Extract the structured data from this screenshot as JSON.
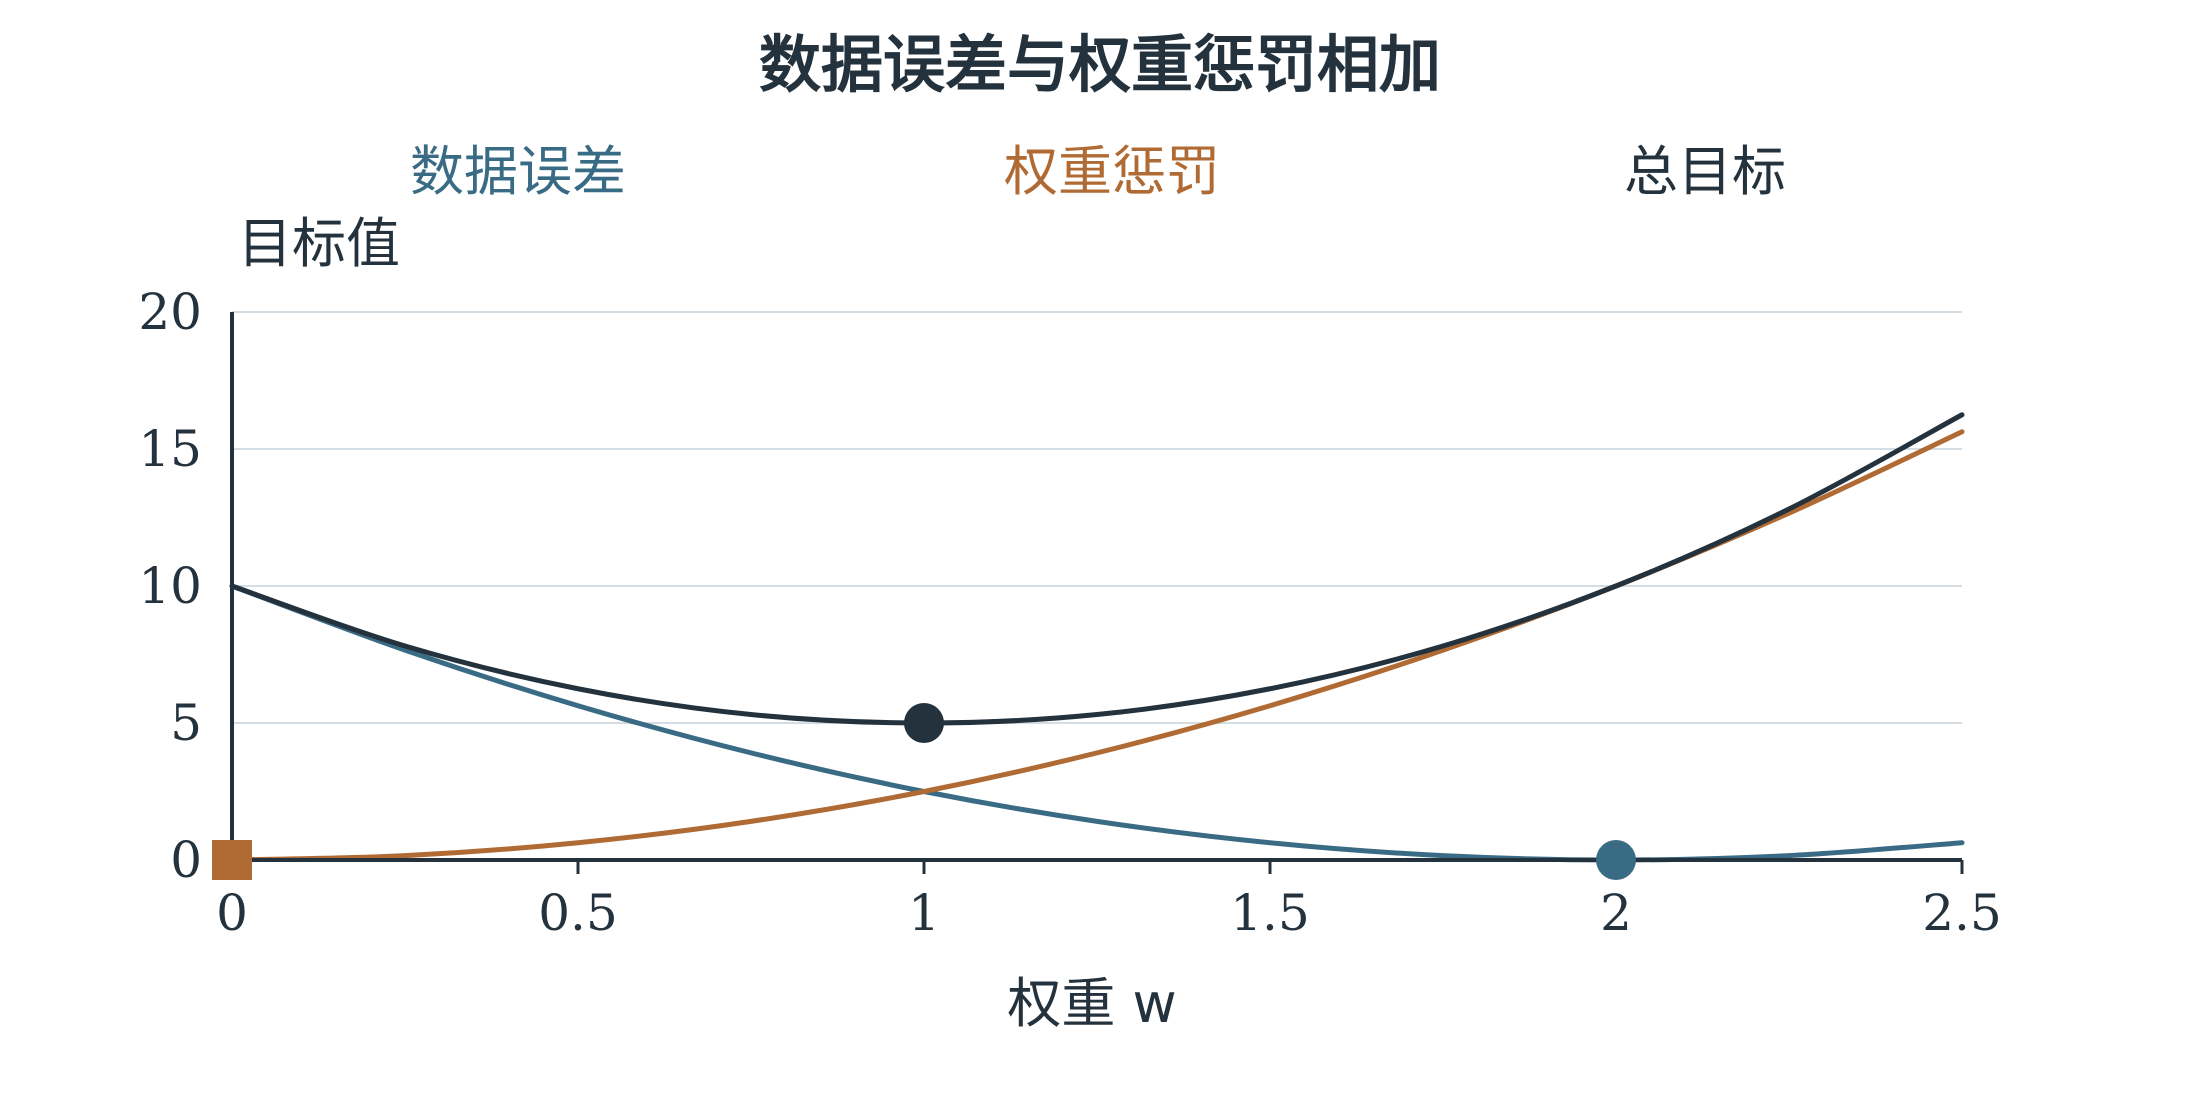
{
  "chart_data": {
    "type": "line",
    "title": "数据误差与权重惩罚相加",
    "xlabel": "权重 w",
    "ylabel": "目标值",
    "xlim": [
      0,
      2.5
    ],
    "ylim": [
      0,
      20
    ],
    "xticks": [
      0,
      0.5,
      1,
      1.5,
      2,
      2.5
    ],
    "xtick_labels": [
      "0",
      "0.5",
      "1",
      "1.5",
      "2",
      "2.5"
    ],
    "yticks": [
      0,
      5,
      10,
      15,
      20
    ],
    "ytick_labels": [
      "0",
      "5",
      "10",
      "15",
      "20"
    ],
    "grid": true,
    "legend_position": "top",
    "series": [
      {
        "name": "数据误差",
        "color": "#3a6b85",
        "x": [
          0,
          0.25,
          0.5,
          0.75,
          1,
          1.25,
          1.5,
          1.75,
          2,
          2.25,
          2.5
        ],
        "y": [
          10,
          7.66,
          5.63,
          3.91,
          2.5,
          1.41,
          0.63,
          0.16,
          0,
          0.16,
          0.63
        ]
      },
      {
        "name": "权重惩罚",
        "color": "#b06a33",
        "x": [
          0,
          0.25,
          0.5,
          0.75,
          1,
          1.25,
          1.5,
          1.75,
          2,
          2.25,
          2.5
        ],
        "y": [
          0,
          0.16,
          0.63,
          1.41,
          2.5,
          3.91,
          5.63,
          7.66,
          10,
          12.66,
          15.63
        ]
      },
      {
        "name": "总目标",
        "color": "#24323d",
        "x": [
          0,
          0.25,
          0.5,
          0.75,
          1,
          1.25,
          1.5,
          1.75,
          2,
          2.25,
          2.5
        ],
        "y": [
          10,
          7.81,
          6.25,
          5.31,
          5,
          5.31,
          6.25,
          7.81,
          10,
          12.81,
          16.25
        ]
      }
    ],
    "markers": [
      {
        "series": "权重惩罚",
        "shape": "square",
        "x": 0,
        "y": 0,
        "color": "#b06a33"
      },
      {
        "series": "总目标",
        "shape": "circle",
        "x": 1,
        "y": 5,
        "color": "#24323d"
      },
      {
        "series": "数据误差",
        "shape": "circle",
        "x": 2,
        "y": 0,
        "color": "#3a6b85"
      }
    ]
  }
}
